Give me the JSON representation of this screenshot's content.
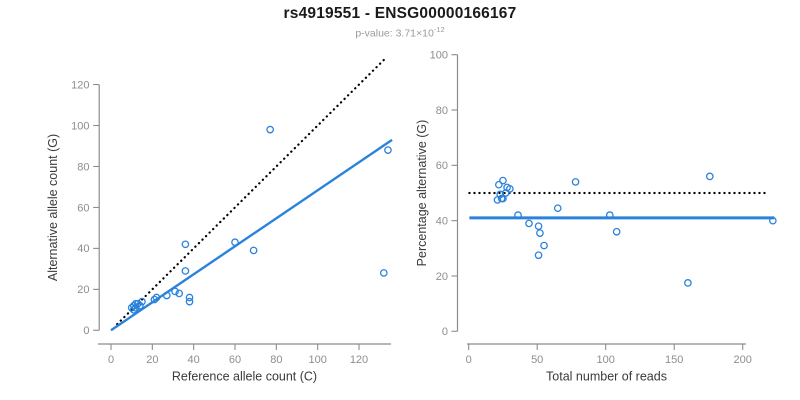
{
  "header": {
    "title": "rs4919551 - ENSG00000166167",
    "subtitle_prefix": "p-value: 3.71×10",
    "subtitle_exponent": "-12"
  },
  "colors": {
    "accent_blue": "#2a82dc",
    "dotted_black": "#000000",
    "axis_gray": "#8c8c8c",
    "tick_label_gray": "#8e8e8e",
    "axis_title_dark": "#3a3a3a",
    "subtitle_gray": "#9b9b9b"
  },
  "chart_data": [
    {
      "type": "scatter",
      "panel": "left",
      "xlabel": "Reference allele count (C)",
      "ylabel": "Alternative allele count (G)",
      "xlim": [
        0,
        135
      ],
      "ylim": [
        0,
        135
      ],
      "xticks": [
        0,
        20,
        40,
        60,
        80,
        100,
        120
      ],
      "yticks": [
        0,
        20,
        40,
        60,
        80,
        100,
        120
      ],
      "grid": false,
      "legend": null,
      "points": [
        [
          10,
          11
        ],
        [
          11,
          10
        ],
        [
          11,
          12
        ],
        [
          12,
          11
        ],
        [
          12,
          13
        ],
        [
          13,
          13
        ],
        [
          14,
          12
        ],
        [
          15,
          14
        ],
        [
          21,
          15
        ],
        [
          22,
          16
        ],
        [
          27,
          17
        ],
        [
          31,
          19
        ],
        [
          33,
          18
        ],
        [
          36,
          29
        ],
        [
          36,
          42
        ],
        [
          38,
          16
        ],
        [
          38,
          14
        ],
        [
          60,
          43
        ],
        [
          69,
          39
        ],
        [
          77,
          98
        ],
        [
          132,
          28
        ],
        [
          134,
          88
        ]
      ],
      "lines": [
        {
          "name": "identity-line",
          "style": "dotted",
          "color": "#000000",
          "x": [
            3,
            133
          ],
          "y": [
            3,
            133
          ]
        },
        {
          "name": "fit-line",
          "style": "solid",
          "color": "#2a82dc",
          "x": [
            0,
            136
          ],
          "y": [
            0,
            93
          ]
        }
      ]
    },
    {
      "type": "scatter",
      "panel": "right",
      "xlabel": "Total number of reads",
      "ylabel": "Percentage alternative (G)",
      "xlim": [
        0,
        225
      ],
      "ylim": [
        0,
        100
      ],
      "xticks": [
        0,
        50,
        100,
        150,
        200
      ],
      "yticks": [
        0,
        20,
        40,
        60,
        80,
        100
      ],
      "grid": false,
      "legend": null,
      "points": [
        [
          21,
          47.5
        ],
        [
          22,
          53
        ],
        [
          23,
          49.5
        ],
        [
          24,
          48
        ],
        [
          25,
          54.5
        ],
        [
          25,
          48
        ],
        [
          27,
          50
        ],
        [
          28,
          52
        ],
        [
          30,
          51.5
        ],
        [
          36,
          42
        ],
        [
          44,
          39
        ],
        [
          51,
          38
        ],
        [
          51,
          27.5
        ],
        [
          52,
          35.5
        ],
        [
          55,
          31
        ],
        [
          65,
          44.5
        ],
        [
          78,
          54
        ],
        [
          103,
          42
        ],
        [
          108,
          36
        ],
        [
          160,
          17.5
        ],
        [
          176,
          56
        ],
        [
          222,
          40
        ]
      ],
      "lines": [
        {
          "name": "fifty-percent-line",
          "style": "dotted",
          "color": "#000000",
          "x": [
            0.5,
            218
          ],
          "y": [
            50,
            50
          ]
        },
        {
          "name": "mean-percentage-line",
          "style": "solid",
          "color": "#2a82dc",
          "x": [
            0.5,
            223
          ],
          "y": [
            41,
            41
          ]
        }
      ]
    }
  ]
}
